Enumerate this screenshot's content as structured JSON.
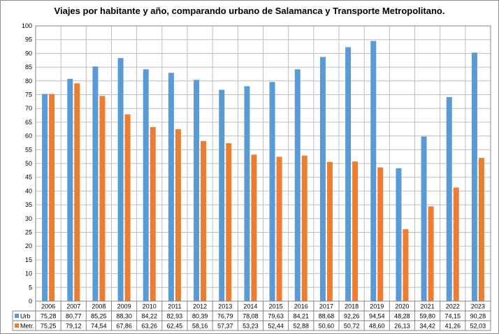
{
  "colors": {
    "urb": "#5b9bd5",
    "metr": "#ed7d31",
    "grid": "#bfbfbf",
    "axis": "#868686"
  },
  "chart_data": {
    "type": "bar",
    "title": "Viajes por habitante y año, comparando urbano de Salamanca y Transporte Metropolitano.",
    "categories": [
      "2006",
      "2007",
      "2008",
      "2009",
      "2010",
      "2011",
      "2012",
      "2013",
      "2014",
      "2015",
      "2016",
      "2017",
      "2018",
      "2019",
      "2020",
      "2021",
      "2022",
      "2023"
    ],
    "series": [
      {
        "name": "Urb",
        "color": "#5b9bd5",
        "values": [
          75.28,
          80.77,
          85.25,
          88.3,
          84.22,
          82.93,
          80.39,
          76.79,
          78.08,
          79.63,
          84.21,
          88.68,
          92.26,
          94.54,
          48.28,
          59.8,
          74.15,
          90.28
        ],
        "labels": [
          "75,28",
          "80,77",
          "85,25",
          "88,30",
          "84,22",
          "82,93",
          "80,39",
          "76,79",
          "78,08",
          "79,63",
          "84,21",
          "88,68",
          "92,26",
          "94,54",
          "48,28",
          "59,80",
          "74,15",
          "90,28"
        ]
      },
      {
        "name": "Metr.",
        "color": "#ed7d31",
        "values": [
          75.25,
          79.12,
          74.54,
          67.86,
          63.26,
          62.45,
          58.16,
          57.37,
          53.23,
          52.44,
          52.88,
          50.6,
          50.72,
          48.6,
          26.13,
          34.42,
          41.26,
          52.03
        ],
        "labels": [
          "75,25",
          "79,12",
          "74,54",
          "67,86",
          "63,26",
          "62,45",
          "58,16",
          "57,37",
          "53,23",
          "52,44",
          "52,88",
          "50,60",
          "50,72",
          "48,60",
          "26,13",
          "34,42",
          "41,26",
          "52,03"
        ]
      }
    ],
    "ylim": [
      0,
      100
    ],
    "yticks": [
      0,
      5,
      10,
      15,
      20,
      25,
      30,
      35,
      40,
      45,
      50,
      55,
      60,
      65,
      70,
      75,
      80,
      85,
      90,
      95,
      100
    ],
    "grid": true,
    "legend": "data-table"
  }
}
